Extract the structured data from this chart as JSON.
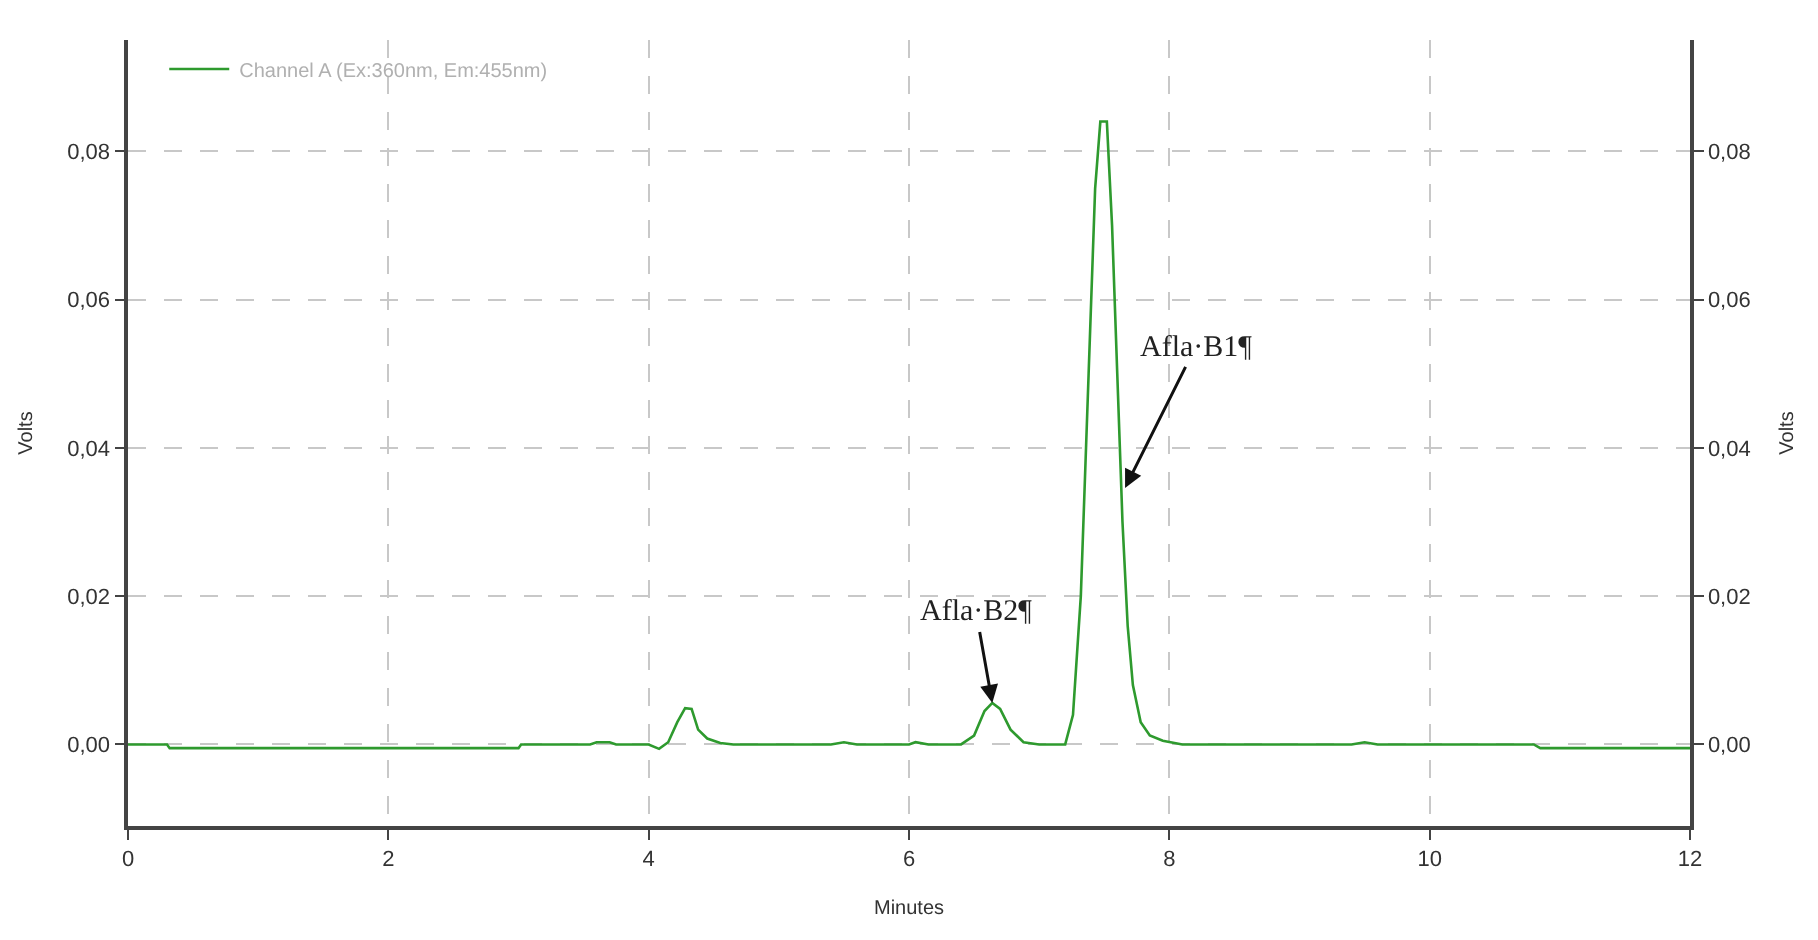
{
  "chart_data": {
    "type": "line",
    "xlabel": "Minutes",
    "ylabel": "Volts",
    "y2label": "Volts",
    "x": [
      0,
      0.3,
      0.32,
      3.0,
      3.02,
      3.55,
      3.6,
      3.7,
      3.75,
      4.0,
      4.08,
      4.15,
      4.22,
      4.28,
      4.33,
      4.38,
      4.45,
      4.55,
      4.65,
      5.4,
      5.5,
      5.6,
      6.0,
      6.05,
      6.15,
      6.4,
      6.5,
      6.58,
      6.64,
      6.7,
      6.78,
      6.88,
      7.0,
      7.2,
      7.26,
      7.32,
      7.38,
      7.43,
      7.47,
      7.52,
      7.56,
      7.6,
      7.64,
      7.68,
      7.72,
      7.78,
      7.85,
      7.95,
      8.1,
      9.4,
      9.5,
      9.6,
      10.8,
      10.85,
      12
    ],
    "series": [
      {
        "name": "Channel A (Ex:360nm, Em:455nm)",
        "color": "#2e9a2e",
        "values": [
          0,
          0,
          -0.0005,
          -0.0005,
          0,
          0,
          0.0003,
          0.0003,
          0,
          0,
          -0.0006,
          0.0003,
          0.003,
          0.0049,
          0.0048,
          0.002,
          0.0008,
          0.0002,
          0,
          0,
          0.0003,
          0,
          0,
          0.0003,
          0,
          0,
          0.0012,
          0.0045,
          0.0056,
          0.0048,
          0.002,
          0.0003,
          0,
          0,
          0.004,
          0.02,
          0.05,
          0.075,
          0.084,
          0.084,
          0.07,
          0.05,
          0.03,
          0.016,
          0.008,
          0.003,
          0.0012,
          0.0005,
          0,
          0,
          0.0003,
          0,
          0,
          -0.0005,
          -0.0005
        ]
      }
    ],
    "xlim": [
      0,
      12
    ],
    "xticks": [
      0,
      2,
      4,
      6,
      8,
      10,
      12
    ],
    "ylim": [
      -0.011,
      0.095
    ],
    "yticks": [
      {
        "value": 0,
        "label": "0,00"
      },
      {
        "value": 0.02,
        "label": "0,02"
      },
      {
        "value": 0.04,
        "label": "0,04"
      },
      {
        "value": 0.06,
        "label": "0,06"
      },
      {
        "value": 0.08,
        "label": "0,08"
      }
    ],
    "y2lim": [
      -0.011,
      0.095
    ],
    "y2ticks": [
      {
        "value": 0,
        "label": "0,00"
      },
      {
        "value": 0.02,
        "label": "0,02"
      },
      {
        "value": 0.04,
        "label": "0,04"
      },
      {
        "value": 0.06,
        "label": "0,06"
      },
      {
        "value": 0.08,
        "label": "0,08"
      }
    ],
    "annotations": [
      {
        "text": "Afla·B2¶",
        "x": 6.64,
        "y": 0.0056
      },
      {
        "text": "Afla·B1¶",
        "x": 7.66,
        "y": 0.0346
      }
    ],
    "grid": true,
    "legend": "top left",
    "marker": "none",
    "line_style": "solid"
  }
}
